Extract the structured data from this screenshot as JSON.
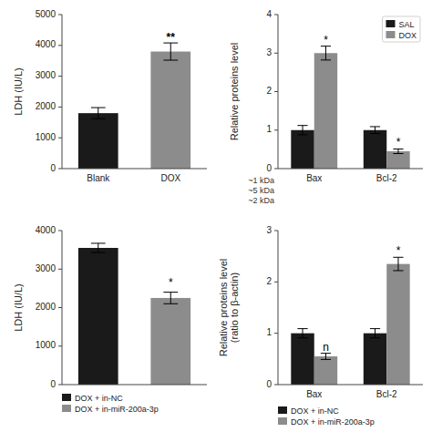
{
  "chart_data": [
    {
      "type": "bar",
      "categories": [
        "Blank",
        "DOX"
      ],
      "values": [
        1800,
        3800
      ],
      "errors": [
        180,
        280
      ],
      "colors": [
        "#1a1a1a",
        "#8c8c8c"
      ],
      "ylabel": "LDH (IU/L)",
      "ylim": [
        0,
        5000
      ],
      "yticks": [
        0,
        1000,
        2000,
        3000,
        4000,
        5000
      ],
      "grid": false,
      "annotations": [
        {
          "text": "**",
          "category": "DOX",
          "y": 4150
        }
      ]
    },
    {
      "type": "bar",
      "categories": [
        "Bax",
        "Bcl-2"
      ],
      "series": [
        {
          "name": "SAL",
          "color": "#1a1a1a",
          "values": [
            1.0,
            1.0
          ],
          "errors": [
            0.12,
            0.09
          ]
        },
        {
          "name": "DOX",
          "color": "#8c8c8c",
          "values": [
            3.0,
            0.45
          ],
          "errors": [
            0.18,
            0.06
          ]
        }
      ],
      "ylabel": "Relative proteins level",
      "ylim": [
        0,
        4
      ],
      "yticks": [
        0,
        1,
        2,
        3,
        4
      ],
      "grid": false,
      "legend": "upper right",
      "annotations": [
        {
          "text": "*",
          "series": "DOX",
          "category": "Bax"
        },
        {
          "text": "*",
          "series": "DOX",
          "category": "Bcl-2"
        },
        {
          "text": "~1 kDa"
        },
        {
          "text": "~5 kDa"
        },
        {
          "text": "~2 kDa"
        }
      ]
    },
    {
      "type": "bar",
      "categories": [
        "DOX + in-NC",
        "DOX + in-miR-200a-3p"
      ],
      "values": [
        3550,
        2250
      ],
      "errors": [
        120,
        150
      ],
      "colors": [
        "#1a1a1a",
        "#8c8c8c"
      ],
      "ylabel": "LDH (IU/L)",
      "ylim": [
        0,
        4000
      ],
      "yticks": [
        0,
        1000,
        2000,
        3000,
        4000
      ],
      "grid": false,
      "tick_labels": "y",
      "legend": "bottom",
      "annotations": [
        {
          "text": "*",
          "category": "DOX + in-miR-200a-3p",
          "y": 2550
        }
      ]
    },
    {
      "type": "bar",
      "categories": [
        "Bax",
        "Bcl-2"
      ],
      "series": [
        {
          "name": "DOX + in-NC",
          "color": "#1a1a1a",
          "values": [
            1.0,
            1.0
          ],
          "errors": [
            0.09,
            0.09
          ]
        },
        {
          "name": "DOX + in-miR-200a-3p",
          "color": "#8c8c8c",
          "values": [
            0.55,
            2.35
          ],
          "errors": [
            0.06,
            0.13
          ]
        }
      ],
      "ylabel": "Relative proteins level\n(ratio to β-actin)",
      "ylim": [
        0,
        3
      ],
      "yticks": [
        0,
        1,
        2,
        3
      ],
      "grid": false,
      "legend": "bottom",
      "annotations": [
        {
          "text": "n",
          "series": "DOX + in-miR-200a-3p",
          "category": "Bax"
        },
        {
          "text": "*",
          "series": "DOX + in-miR-200a-3p",
          "category": "Bcl-2"
        }
      ]
    }
  ]
}
